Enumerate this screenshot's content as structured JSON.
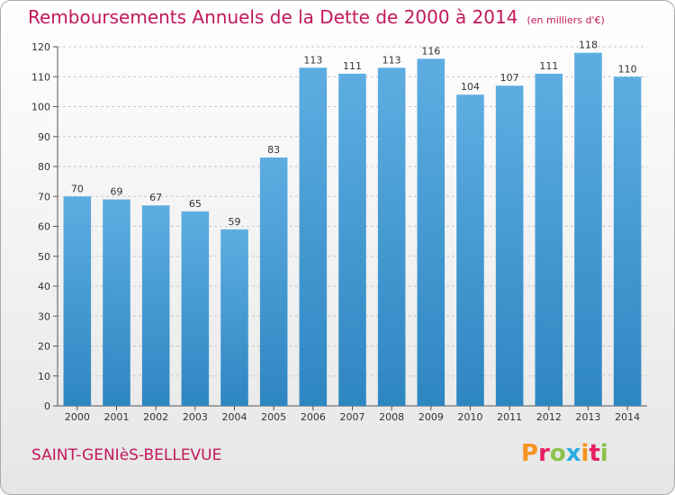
{
  "header": {
    "title": "Remboursements Annuels de la Dette de 2000 à 2014",
    "unit": "(en milliers d'€)"
  },
  "footer": {
    "location": "SAINT-GENIèS-BELLEVUE",
    "logo_letters": [
      "P",
      "r",
      "o",
      "x",
      "i",
      "t",
      "i"
    ],
    "logo_colors": [
      "#f7931e",
      "#e91e63",
      "#8bc34a",
      "#29abe2",
      "#f7931e",
      "#e91e63",
      "#8bc34a"
    ]
  },
  "colors": {
    "bar_top": "#5dade2",
    "bar_bottom": "#2e86c1",
    "grid": "#c8c8c8",
    "title": "#c2185b"
  },
  "chart_data": {
    "type": "bar",
    "categories": [
      "2000",
      "2001",
      "2002",
      "2003",
      "2004",
      "2005",
      "2006",
      "2007",
      "2008",
      "2009",
      "2010",
      "2011",
      "2012",
      "2013",
      "2014"
    ],
    "values": [
      70,
      69,
      67,
      65,
      59,
      83,
      113,
      111,
      113,
      116,
      104,
      107,
      111,
      118,
      110
    ],
    "title": "Remboursements Annuels de la Dette de 2000 à 2014",
    "xlabel": "",
    "ylabel": "",
    "ylim": [
      0,
      120
    ],
    "yticks": [
      0,
      10,
      20,
      30,
      40,
      50,
      60,
      70,
      80,
      90,
      100,
      110,
      120
    ],
    "grid": true,
    "data_labels": true
  }
}
